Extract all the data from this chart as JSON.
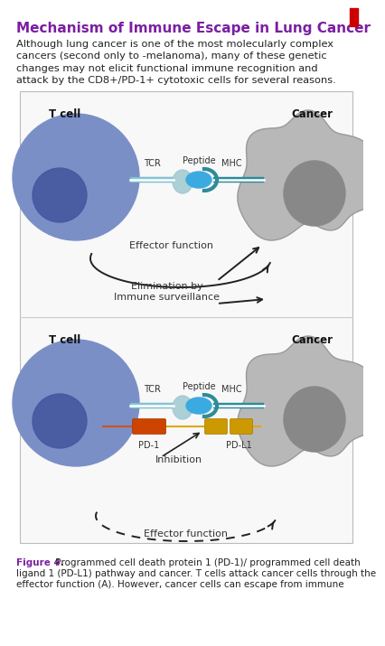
{
  "title": "Mechanism of Immune Escape in Lung Cancer",
  "title_color": "#7B1FA2",
  "body_line1": "Although lung cancer is one of the most molecularly complex",
  "body_line2": "cancers (second only to -melanoma), many of these genetic",
  "body_line3": "changes may not elicit functional immune recognition and",
  "body_line4": "attack by the CD8+/PD-1+ cytotoxic cells for several reasons.",
  "fig_bold": "Figure 4.",
  "fig_rest": " Programmed cell death protein 1 (PD-1)/ programmed cell death",
  "fig_line2": "ligand 1 (PD-L1) pathway and cancer. T cells attack cancer cells through the",
  "fig_line3": "effector function (A). However, cancer cells can escape from immune",
  "background_color": "#FFFFFF",
  "diagram_bg": "#F8F8F8",
  "t_cell_color": "#7B8FC7",
  "t_cell_nucleus_color": "#4558A0",
  "cancer_cell_color": "#B8B8B8",
  "cancer_inner_color": "#888888",
  "tcr_bar_color": "#88C8D8",
  "mhc_bar_color": "#2E8B9A",
  "peptide_color": "#3BAAE0",
  "tcr_head_color": "#A0C8D0",
  "pd1_color": "#CC4400",
  "pdl1_color": "#CC9900",
  "pd_line_color": "#DDAA00",
  "pd1_line_color": "#CC5522",
  "accent_red": "#CC0000",
  "purple": "#7B1FA2",
  "arrow_color": "#222222",
  "text_color": "#333333",
  "border_color": "#BBBBBB"
}
